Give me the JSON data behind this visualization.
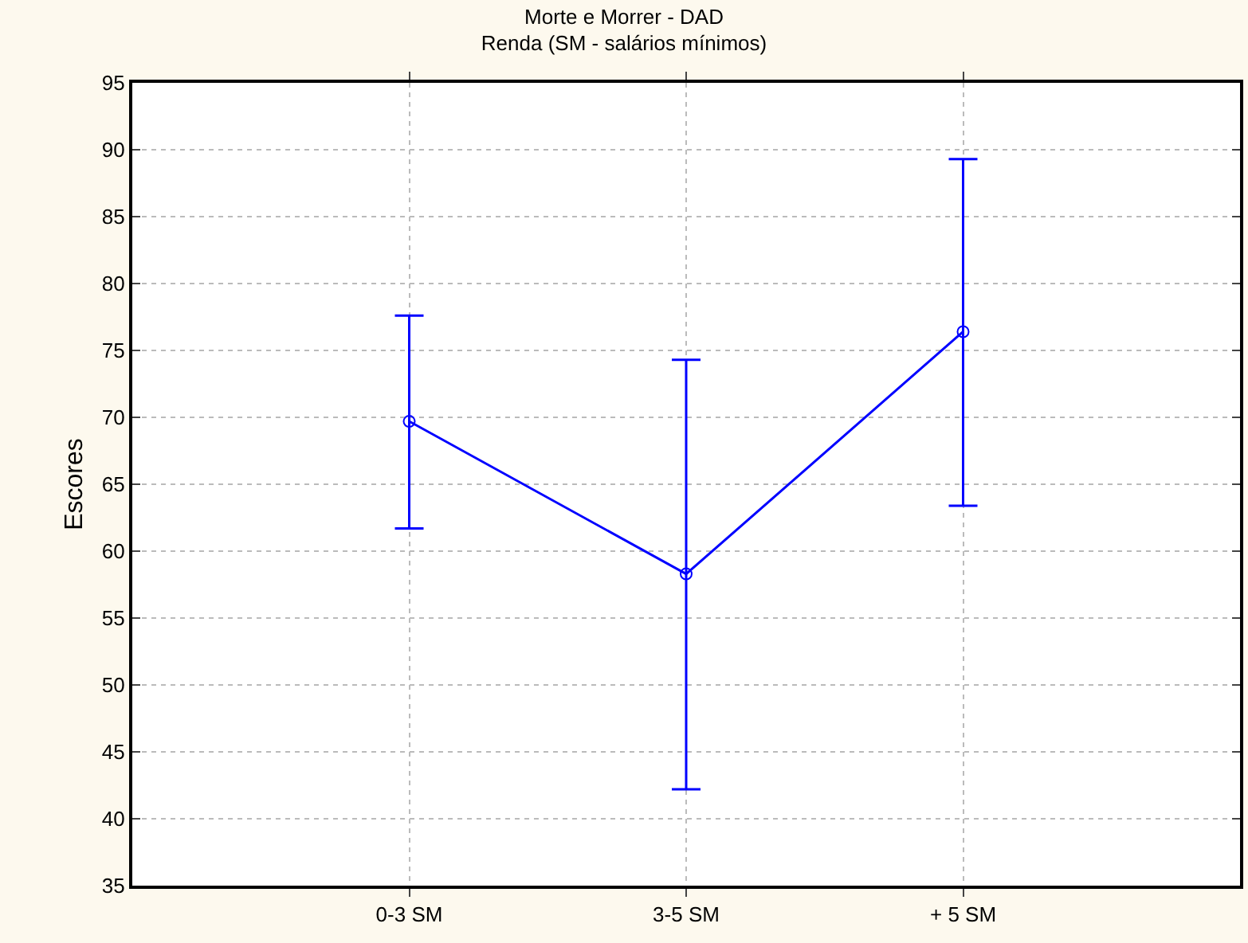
{
  "chart_data": {
    "type": "line",
    "title": "Morte e Morrer - DAD",
    "subtitle": "Renda (SM - salários mínimos)",
    "ylabel": "Escores",
    "categories": [
      "0-3 SM",
      "3-5 SM",
      "+ 5 SM"
    ],
    "series": [
      {
        "color": "#0000ff",
        "values": [
          69.7,
          58.3,
          76.4
        ],
        "errors": [
          [
            61.7,
            77.6
          ],
          [
            42.2,
            74.3
          ],
          [
            63.4,
            89.3
          ]
        ]
      }
    ],
    "ylim": [
      35,
      95
    ],
    "yticks": [
      35,
      40,
      45,
      50,
      55,
      60,
      65,
      70,
      75,
      80,
      85,
      90,
      95
    ],
    "grid": true,
    "marker": "circle",
    "line_style": "solid"
  }
}
